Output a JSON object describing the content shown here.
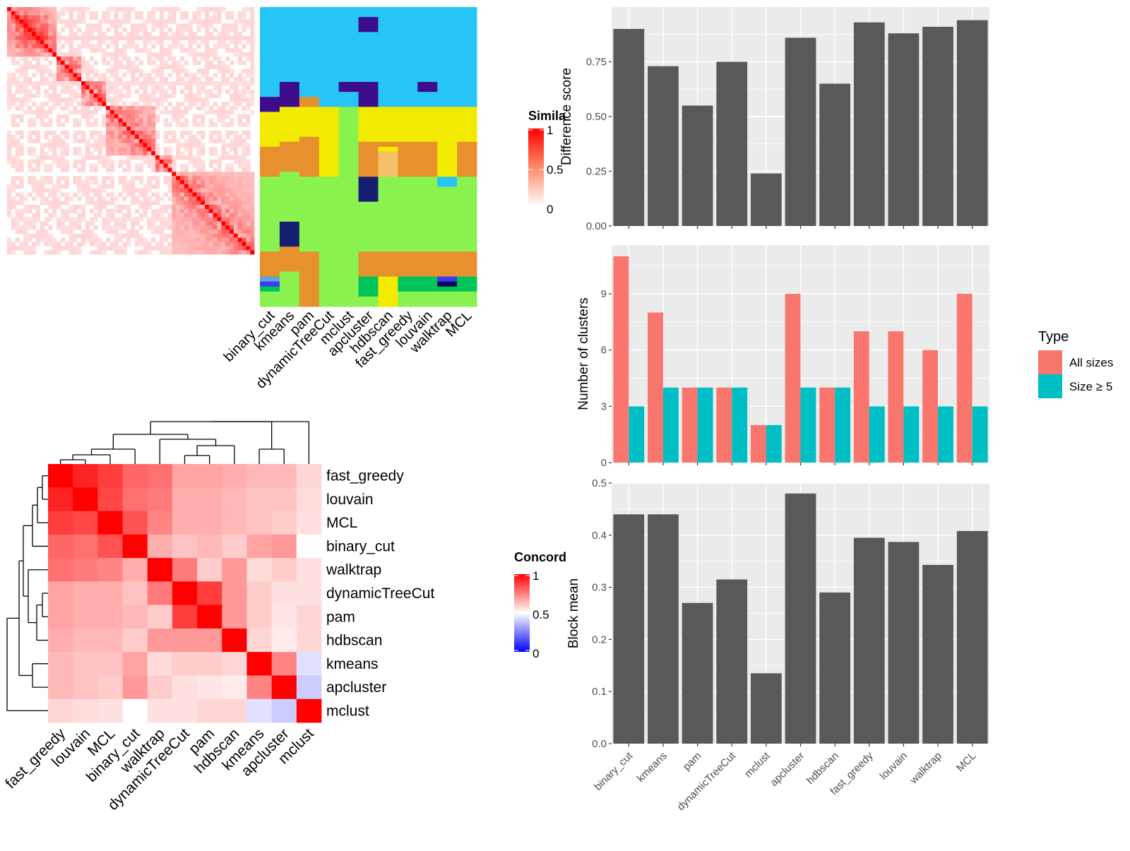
{
  "colors": {
    "panel_bg": "#ebebeb",
    "grid": "#ffffff",
    "bar_dark": "#595959",
    "series_all": "#f8766d",
    "series_size": "#00bfc4",
    "heat_high": "#ff0000",
    "heat_low": "#ffffff",
    "conc_low": "#0000ff"
  },
  "chart_data": [
    {
      "type": "heatmap",
      "id": "similarity-heatmap",
      "legend_title": "Simila",
      "legend_ticks": [
        "1",
        "0.5",
        "0"
      ],
      "size": 60,
      "blocks": [
        [
          0,
          12
        ],
        [
          12,
          18
        ],
        [
          18,
          24
        ],
        [
          24,
          36
        ],
        [
          36,
          40
        ],
        [
          40,
          60
        ]
      ]
    },
    {
      "type": "table",
      "id": "cluster-assignment-grid",
      "methods": [
        "binary_cut",
        "kmeans",
        "pam",
        "dynamicTreeCut",
        "mclust",
        "apcluster",
        "hdbscan",
        "fast_greedy",
        "louvain",
        "walktrap",
        "MCL"
      ],
      "palette": {
        "S": "#27c5f5",
        "P": "#3d0c8c",
        "O": "#e6902e",
        "Y": "#f2ea00",
        "G": "#89f24f",
        "N": "#141e70",
        "L": "#f5c26a",
        "Q": "#5da5d8",
        "B": "#3b3bf5",
        "D": "#00c45a",
        "K": "#0a0a55"
      },
      "columns": [
        "SSSSSSSSSSSSSSSSSSPPPYYYYYYYOOOOOOGGGGGGGGGGGGGGGOOOOOQBDGGG",
        "SSSSSSSSSSSSSSSPPPPPYYYYYYYOOOOOOGGGGGGGGGGNNNNNOOOOOGGGGGGG",
        "SSSSSSSSSSSSSSSSSSOOYYYYYYOOOOOOOOGGGGGGGGGGGGGGGOOOOOOOOOOO",
        "SSSSSSSSSSSSSSSSSSSSYYYYYYYYYYYYYYGGGGGGGGGGGGGGGGGGGGGGGGGG",
        "SSSSSSSSSSSSSSSPPSSSGGGGGGGGGGGGGGGGGGGGGGGGGGGGGGGGGGGGGGGG",
        "SSPPPSSSSSSSSSSPPPPPYYYYYYYOOOOOOONNNNNGGGGGGGGGGOOOOODDDDGG",
        "SSSSSSSSSSSSSSSSSSSSYYYYYYYOYLLLLLGGGGGGGGGGGGGGGOOOOOYYYYYY",
        "SSSSSSSSSSSSSSSSSSSSYYYYYYYOOOOOOOGGGGGGGGGGGGGGGOOOOODDDGGG",
        "SSSSSSSSSSSSSSSPPSSSYYYYYYYOOOOOOOGGGGGGGGGGGGGGGOOOOODDDGGG",
        "SSSSSSSSSSSSSSSSSSSSYYYYYYYYYYYYYYSSGGGGGGGGGGGGGOOOOOBKDGGG",
        "SSSSSSSSSSSSSSSSSSSSYYYYYYYOOOOOOOGGGGGGGGGGGGGGGOOOOODDDGGG"
      ]
    },
    {
      "type": "heatmap",
      "id": "concordance-heatmap",
      "legend_title": "Concord",
      "legend_ticks": [
        "1",
        "0.5",
        "0"
      ],
      "labels": [
        "fast_greedy",
        "louvain",
        "MCL",
        "binary_cut",
        "walktrap",
        "dynamicTreeCut",
        "pam",
        "hdbscan",
        "kmeans",
        "apcluster",
        "mclust"
      ],
      "values": [
        [
          1.0,
          0.93,
          0.88,
          0.8,
          0.78,
          0.68,
          0.68,
          0.66,
          0.64,
          0.64,
          0.58
        ],
        [
          0.93,
          1.0,
          0.86,
          0.78,
          0.76,
          0.66,
          0.66,
          0.64,
          0.62,
          0.62,
          0.57
        ],
        [
          0.88,
          0.86,
          1.0,
          0.84,
          0.74,
          0.66,
          0.66,
          0.64,
          0.62,
          0.6,
          0.56
        ],
        [
          0.8,
          0.78,
          0.84,
          1.0,
          0.66,
          0.62,
          0.64,
          0.6,
          0.68,
          0.7,
          0.5
        ],
        [
          0.78,
          0.76,
          0.74,
          0.66,
          1.0,
          0.76,
          0.6,
          0.7,
          0.57,
          0.6,
          0.56
        ],
        [
          0.68,
          0.66,
          0.66,
          0.62,
          0.76,
          1.0,
          0.88,
          0.7,
          0.6,
          0.56,
          0.56
        ],
        [
          0.68,
          0.66,
          0.66,
          0.64,
          0.6,
          0.88,
          1.0,
          0.7,
          0.6,
          0.55,
          0.58
        ],
        [
          0.66,
          0.64,
          0.64,
          0.6,
          0.7,
          0.7,
          0.7,
          1.0,
          0.58,
          0.54,
          0.58
        ],
        [
          0.64,
          0.62,
          0.62,
          0.68,
          0.57,
          0.6,
          0.6,
          0.58,
          1.0,
          0.74,
          0.44
        ],
        [
          0.64,
          0.62,
          0.6,
          0.7,
          0.6,
          0.56,
          0.55,
          0.54,
          0.74,
          1.0,
          0.4
        ],
        [
          0.58,
          0.57,
          0.56,
          0.5,
          0.56,
          0.56,
          0.58,
          0.58,
          0.44,
          0.4,
          1.0
        ]
      ]
    },
    {
      "type": "bar",
      "id": "difference-score-chart",
      "categories": [
        "binary_cut",
        "kmeans",
        "pam",
        "dynamicTreeCut",
        "mclust",
        "apcluster",
        "hdbscan",
        "fast_greedy",
        "louvain",
        "walktrap",
        "MCL"
      ],
      "values": [
        0.9,
        0.73,
        0.55,
        0.75,
        0.24,
        0.86,
        0.65,
        0.93,
        0.88,
        0.91,
        0.94
      ],
      "ylabel": "Difference score",
      "ylim": [
        0,
        1.0
      ],
      "yticks": [
        "0.00",
        "0.25",
        "0.50",
        "0.75"
      ]
    },
    {
      "type": "bar",
      "id": "number-of-clusters-chart",
      "categories": [
        "binary_cut",
        "kmeans",
        "pam",
        "dynamicTreeCut",
        "mclust",
        "apcluster",
        "hdbscan",
        "fast_greedy",
        "louvain",
        "walktrap",
        "MCL"
      ],
      "series": [
        {
          "name": "All sizes",
          "values": [
            11,
            8,
            4,
            4,
            2,
            9,
            4,
            7,
            7,
            6,
            9
          ]
        },
        {
          "name": "Size ≥ 5",
          "values": [
            3,
            4,
            4,
            4,
            2,
            4,
            4,
            3,
            3,
            3,
            3
          ]
        }
      ],
      "ylabel": "Number of clusters",
      "ylim": [
        0,
        11.6
      ],
      "yticks": [
        "0",
        "3",
        "6",
        "9"
      ],
      "legend_title": "Type",
      "legend_position": "right"
    },
    {
      "type": "bar",
      "id": "block-mean-chart",
      "categories": [
        "binary_cut",
        "kmeans",
        "pam",
        "dynamicTreeCut",
        "mclust",
        "apcluster",
        "hdbscan",
        "fast_greedy",
        "louvain",
        "walktrap",
        "MCL"
      ],
      "values": [
        0.44,
        0.44,
        0.27,
        0.315,
        0.135,
        0.48,
        0.29,
        0.395,
        0.387,
        0.343,
        0.408
      ],
      "ylabel": "Block mean",
      "ylim": [
        0,
        0.5
      ],
      "yticks": [
        "0.0",
        "0.1",
        "0.2",
        "0.3",
        "0.4",
        "0.5"
      ]
    }
  ]
}
